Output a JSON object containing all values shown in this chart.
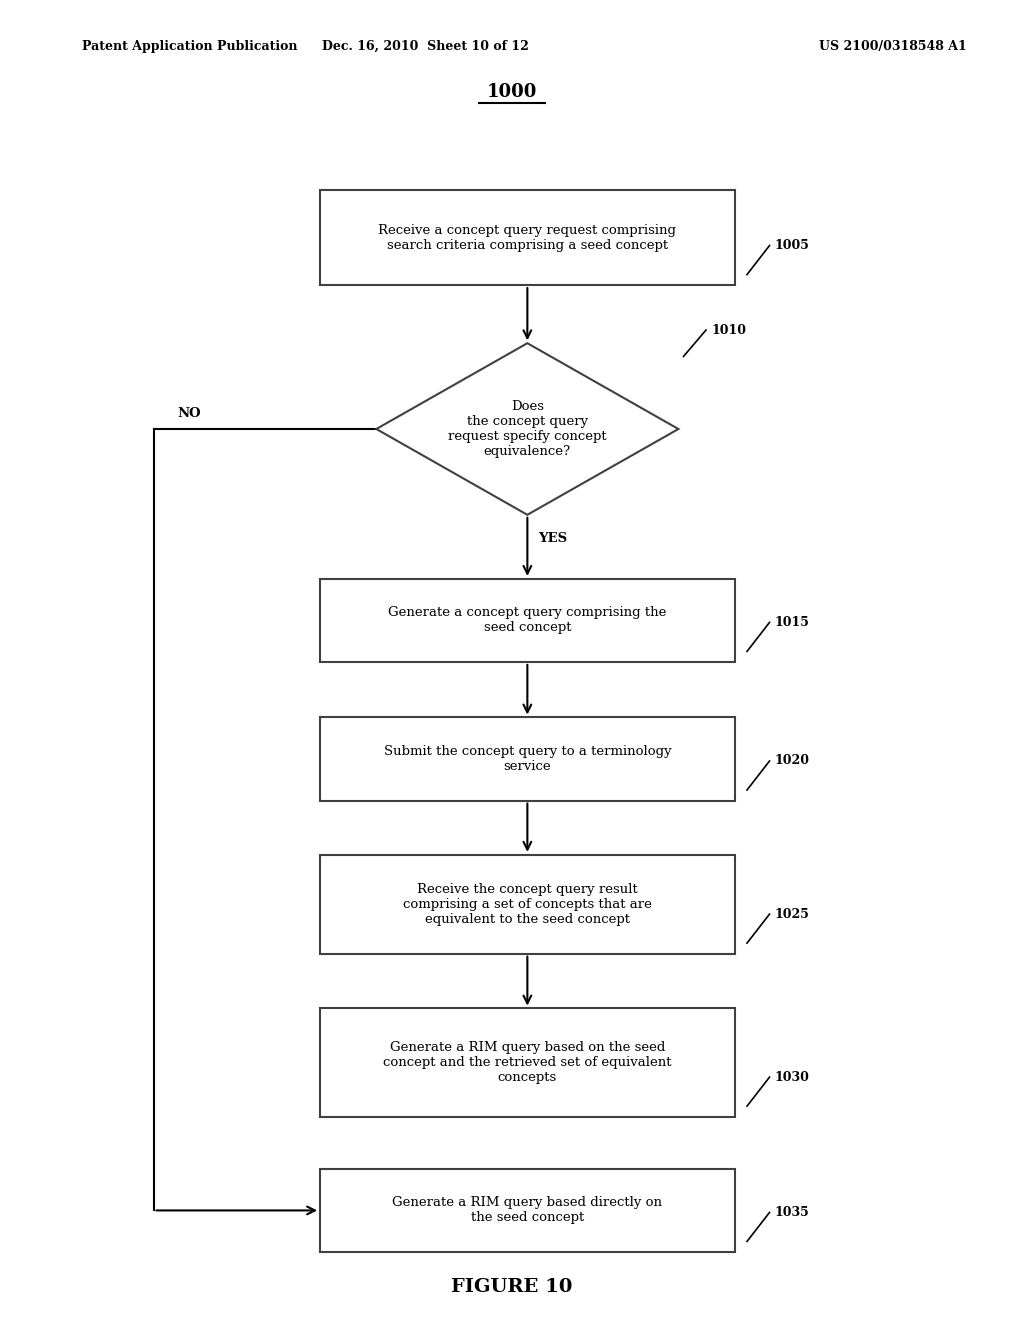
{
  "bg_color": "#ffffff",
  "header_left": "Patent Application Publication",
  "header_mid": "Dec. 16, 2010  Sheet 10 of 12",
  "header_right": "US 2100/0318548 A1",
  "diagram_label": "1000",
  "figure_caption": "FIGURE 10",
  "node_1005_text": "Receive a concept query request comprising\nsearch criteria comprising a seed concept",
  "node_1010_text": "Does\nthe concept query\nrequest specify concept\nequivalence?",
  "node_1015_text": "Generate a concept query comprising the\nseed concept",
  "node_1020_text": "Submit the concept query to a terminology\nservice",
  "node_1025_text": "Receive the concept query result\ncomprising a set of concepts that are\nequivalent to the seed concept",
  "node_1030_text": "Generate a RIM query based on the seed\nconcept and the retrieved set of equivalent\nconcepts",
  "node_1035_text": "Generate a RIM query based directly on\nthe seed concept",
  "yes_label": "YES",
  "no_label": "NO"
}
